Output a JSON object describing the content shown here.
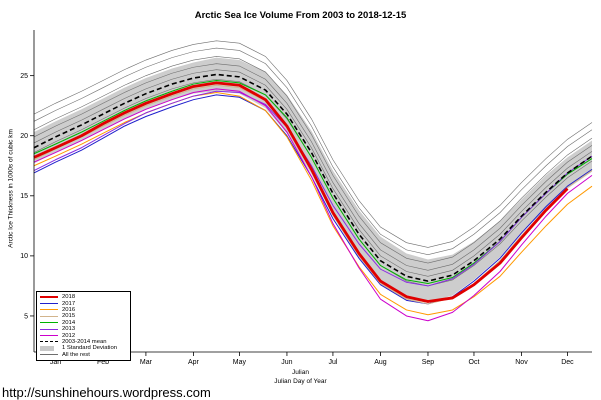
{
  "page": {
    "footer_url": "http://sunshinehours.wordpress.com"
  },
  "chart_data": {
    "type": "line",
    "title": "Arctic Sea Ice Volume From 2003 to 2018-12-15",
    "ylabel": "Arctic Ice Thickness in 1000s of cubic km",
    "xlabel_line1": "Julian",
    "xlabel_line2": "Julian Day of Year",
    "ylim": [
      2,
      28.8
    ],
    "yticks": [
      5,
      10,
      15,
      20,
      25
    ],
    "months": [
      "Jan",
      "Feb",
      "Mar",
      "Apr",
      "May",
      "Jun",
      "Jul",
      "Aug",
      "Sep",
      "Oct",
      "Nov",
      "Dec"
    ],
    "month_days": [
      15,
      46,
      74,
      105,
      135,
      166,
      196,
      227,
      258,
      288,
      319,
      349
    ],
    "x": [
      1,
      15,
      32,
      46,
      60,
      74,
      91,
      105,
      120,
      135,
      152,
      166,
      182,
      196,
      213,
      227,
      244,
      258,
      274,
      288,
      305,
      319,
      335,
      349,
      365
    ],
    "band": {
      "name": "1 Standard Deviation",
      "color": "#c8c8c8",
      "upper": [
        20.3,
        21.2,
        22.2,
        23.1,
        24.0,
        24.8,
        25.6,
        26.1,
        26.5,
        26.3,
        25.3,
        23.4,
        20.4,
        17.1,
        13.8,
        11.6,
        10.2,
        9.7,
        10.1,
        11.2,
        12.9,
        14.7,
        16.7,
        18.2,
        19.6
      ],
      "lower": [
        17.7,
        18.6,
        19.6,
        20.5,
        21.4,
        22.2,
        23.0,
        23.5,
        23.7,
        23.5,
        22.3,
        20.2,
        16.8,
        13.3,
        9.8,
        7.6,
        6.4,
        6.1,
        6.7,
        8.0,
        9.9,
        11.9,
        13.9,
        15.6,
        17.0
      ]
    },
    "series": [
      {
        "name": "2018",
        "color": "#e00000",
        "width": 2.8,
        "dash": "",
        "values": [
          18.2,
          19.0,
          20.0,
          21.0,
          21.9,
          22.7,
          23.5,
          24.1,
          24.4,
          24.2,
          23.0,
          20.8,
          17.2,
          13.6,
          10.2,
          7.9,
          6.6,
          6.2,
          6.5,
          7.6,
          9.4,
          11.5,
          13.8,
          15.6
        ]
      },
      {
        "name": "2017",
        "color": "#2020cc",
        "width": 1,
        "dash": "",
        "values": [
          16.9,
          17.8,
          18.8,
          19.8,
          20.8,
          21.6,
          22.4,
          23.0,
          23.4,
          23.2,
          22.1,
          20.0,
          16.6,
          13.1,
          9.8,
          7.6,
          6.3,
          6.0,
          6.6,
          7.9,
          9.8,
          11.9,
          14.1,
          15.8,
          17.2
        ]
      },
      {
        "name": "2016",
        "color": "#ff9900",
        "width": 1,
        "dash": "",
        "values": [
          17.5,
          18.3,
          19.3,
          20.2,
          21.1,
          21.9,
          22.7,
          23.3,
          23.6,
          23.3,
          22.1,
          19.9,
          16.3,
          12.5,
          9.1,
          6.8,
          5.5,
          5.1,
          5.5,
          6.6,
          8.3,
          10.3,
          12.5,
          14.3,
          15.8
        ]
      },
      {
        "name": "2015",
        "color": "#d2b48c",
        "width": 1,
        "dash": "",
        "values": [
          18.0,
          18.9,
          19.9,
          20.8,
          21.7,
          22.5,
          23.3,
          23.9,
          24.2,
          24.0,
          22.9,
          20.7,
          17.1,
          13.4,
          10.0,
          7.7,
          6.4,
          6.0,
          6.5,
          7.7,
          9.6,
          11.7,
          13.9,
          15.7,
          17.1
        ]
      },
      {
        "name": "2014",
        "color": "#00b300",
        "width": 1,
        "dash": "",
        "values": [
          18.5,
          19.3,
          20.3,
          21.2,
          22.1,
          22.9,
          23.7,
          24.3,
          24.6,
          24.4,
          23.4,
          21.5,
          18.2,
          14.8,
          11.4,
          9.2,
          8.0,
          7.7,
          8.2,
          9.4,
          11.2,
          13.2,
          15.2,
          16.8,
          18.1
        ]
      },
      {
        "name": "2013",
        "color": "#8a2be2",
        "width": 1,
        "dash": "",
        "values": [
          17.1,
          18.0,
          19.0,
          20.0,
          21.0,
          21.9,
          22.7,
          23.3,
          23.7,
          23.6,
          22.6,
          20.7,
          17.5,
          14.2,
          11.0,
          8.9,
          7.8,
          7.5,
          8.1,
          9.3,
          11.2,
          13.2,
          15.2,
          16.9,
          18.3
        ]
      },
      {
        "name": "2012",
        "color": "#cc00cc",
        "width": 1,
        "dash": "",
        "values": [
          17.8,
          18.6,
          19.6,
          20.5,
          21.4,
          22.2,
          23.0,
          23.6,
          23.9,
          23.7,
          22.5,
          20.3,
          16.6,
          12.7,
          9.0,
          6.4,
          5.0,
          4.6,
          5.3,
          6.7,
          8.7,
          10.9,
          13.3,
          15.2,
          16.7
        ]
      },
      {
        "name": "2003-2014 mean",
        "color": "#000000",
        "width": 1.6,
        "dash": "5,3",
        "values": [
          19.0,
          19.9,
          20.9,
          21.8,
          22.7,
          23.5,
          24.3,
          24.8,
          25.1,
          24.9,
          23.8,
          21.8,
          18.6,
          15.2,
          11.8,
          9.6,
          8.3,
          7.9,
          8.4,
          9.6,
          11.4,
          13.3,
          15.3,
          16.9,
          18.3
        ]
      }
    ],
    "rest": {
      "name": "All the rest",
      "color": "#6e6e6e",
      "width": 0.6,
      "lines": [
        [
          21.8,
          22.7,
          23.7,
          24.6,
          25.5,
          26.3,
          27.1,
          27.6,
          27.9,
          27.7,
          26.6,
          24.6,
          21.4,
          18.0,
          14.6,
          12.4,
          11.1,
          10.7,
          11.2,
          12.4,
          14.2,
          16.1,
          18.1,
          19.7,
          21.1
        ],
        [
          21.2,
          22.1,
          23.1,
          24.0,
          24.9,
          25.7,
          26.5,
          27.0,
          27.3,
          27.1,
          26.0,
          24.0,
          20.8,
          17.4,
          14.0,
          11.8,
          10.5,
          10.1,
          10.6,
          11.8,
          13.6,
          15.5,
          17.5,
          19.1,
          20.5
        ],
        [
          20.5,
          21.4,
          22.4,
          23.3,
          24.2,
          25.0,
          25.8,
          26.3,
          26.6,
          26.4,
          25.3,
          23.3,
          20.1,
          16.7,
          13.3,
          11.1,
          9.8,
          9.4,
          9.9,
          11.1,
          12.9,
          14.8,
          16.8,
          18.4,
          19.8
        ],
        [
          19.9,
          20.8,
          21.8,
          22.7,
          23.6,
          24.4,
          25.2,
          25.7,
          26.0,
          25.8,
          24.7,
          22.7,
          19.5,
          16.1,
          12.7,
          10.5,
          9.2,
          8.8,
          9.3,
          10.5,
          12.3,
          14.2,
          16.2,
          17.8,
          19.2
        ],
        [
          19.4,
          20.3,
          21.3,
          22.2,
          23.1,
          23.9,
          24.7,
          25.2,
          25.5,
          25.3,
          24.2,
          22.2,
          19.0,
          15.6,
          12.2,
          10.0,
          8.7,
          8.3,
          8.8,
          10.0,
          11.8,
          13.7,
          15.7,
          17.3,
          18.7
        ],
        [
          18.6,
          19.5,
          20.5,
          21.4,
          22.3,
          23.1,
          23.9,
          24.4,
          24.7,
          24.5,
          23.4,
          21.4,
          18.2,
          14.8,
          11.4,
          9.2,
          7.9,
          7.5,
          8.0,
          9.2,
          11.0,
          12.9,
          14.9,
          16.5,
          17.9
        ]
      ]
    },
    "legend_position": "bottom-left",
    "grid": false
  }
}
